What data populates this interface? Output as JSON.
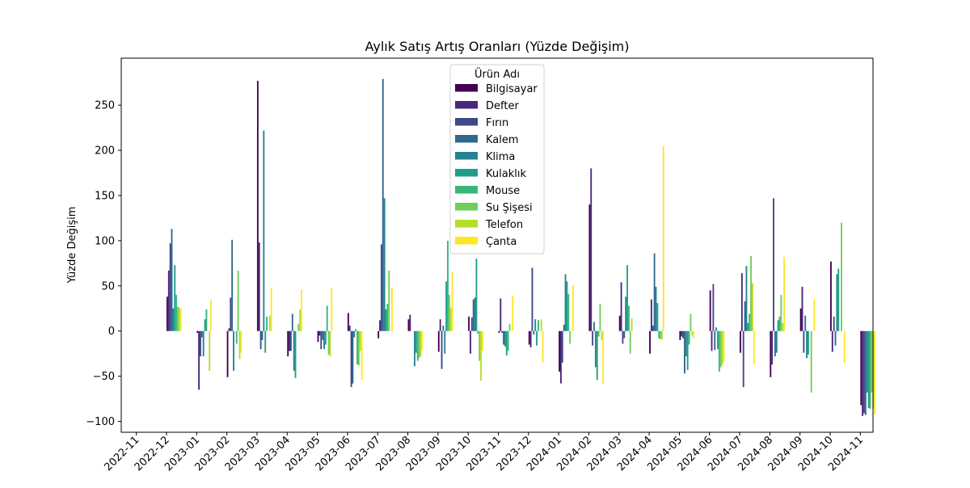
{
  "chart_data": {
    "type": "bar",
    "title": "Aylık Satış Artış Oranları (Yüzde Değişim)",
    "xlabel": "",
    "ylabel": "Yüzde Değişim",
    "ylim": [
      -112,
      302
    ],
    "yticks": [
      -100,
      -50,
      0,
      50,
      100,
      150,
      200,
      250
    ],
    "grid": false,
    "legend": {
      "title": "Ürün Adı",
      "placement": "top-center"
    },
    "categories": [
      "2022-11",
      "2022-12",
      "2023-01",
      "2023-02",
      "2023-03",
      "2023-04",
      "2023-05",
      "2023-06",
      "2023-07",
      "2023-08",
      "2023-09",
      "2023-10",
      "2023-11",
      "2023-12",
      "2024-01",
      "2024-02",
      "2024-03",
      "2024-04",
      "2024-05",
      "2024-06",
      "2024-07",
      "2024-08",
      "2024-09",
      "2024-10",
      "2024-11"
    ],
    "series": [
      {
        "name": "Bilgisayar",
        "color": "#440154",
        "values": [
          0,
          38,
          -2,
          -51,
          277,
          -28,
          -12,
          20,
          -8,
          13,
          -23,
          16,
          -2,
          -15,
          -45,
          140,
          17,
          -25,
          -10,
          45,
          -24,
          -51,
          25,
          77,
          -82
        ]
      },
      {
        "name": "Defter",
        "color": "#482878",
        "values": [
          0,
          67,
          -65,
          3,
          98,
          -22,
          -5,
          6,
          12,
          18,
          13,
          -25,
          36,
          -18,
          -58,
          180,
          54,
          35,
          -6,
          -22,
          64,
          -37,
          49,
          -23,
          -94
        ]
      },
      {
        "name": "Fırın",
        "color": "#3e4989",
        "values": [
          0,
          97,
          -28,
          37,
          -20,
          -22,
          -20,
          -62,
          96,
          0,
          -42,
          15,
          -2,
          70,
          -35,
          -16,
          -14,
          6,
          -8,
          52,
          -62,
          147,
          -24,
          16,
          -91
        ]
      },
      {
        "name": "Kalem",
        "color": "#31688e",
        "values": [
          0,
          113,
          -7,
          101,
          -10,
          19,
          -10,
          -58,
          279,
          0,
          6,
          35,
          -15,
          -4,
          7,
          10,
          -8,
          86,
          -47,
          -21,
          33,
          -28,
          17,
          -16,
          -93
        ]
      },
      {
        "name": "Klima",
        "color": "#26828e",
        "values": [
          0,
          25,
          -28,
          -44,
          222,
          -44,
          -20,
          -7,
          147,
          -39,
          -25,
          37,
          -17,
          13,
          63,
          -40,
          38,
          49,
          -28,
          4,
          72,
          -24,
          -30,
          63,
          -68
        ]
      },
      {
        "name": "Kulaklık",
        "color": "#1f9e89",
        "values": [
          0,
          73,
          13,
          0,
          -24,
          -52,
          -15,
          2,
          24,
          -24,
          55,
          80,
          -27,
          -16,
          55,
          -54,
          73,
          31,
          -43,
          -20,
          9,
          12,
          -26,
          69,
          -85
        ]
      },
      {
        "name": "Mouse",
        "color": "#35b779",
        "values": [
          0,
          40,
          24,
          -14,
          16,
          0,
          28,
          -37,
          30,
          -33,
          100,
          -3,
          -22,
          12,
          41,
          -6,
          28,
          -8,
          -15,
          -45,
          19,
          16,
          0,
          0,
          -86
        ]
      },
      {
        "name": "Su Şişesi",
        "color": "#6ece58",
        "values": [
          0,
          27,
          0,
          67,
          0,
          8,
          -26,
          -38,
          67,
          -30,
          40,
          -33,
          8,
          0,
          -14,
          30,
          -25,
          -9,
          19,
          -40,
          83,
          40,
          -68,
          120,
          -68
        ]
      },
      {
        "name": "Telefon",
        "color": "#b5de2b",
        "values": [
          0,
          26,
          -44,
          -31,
          17,
          24,
          -28,
          -22,
          0,
          -28,
          26,
          -55,
          0,
          13,
          0,
          -10,
          14,
          -9,
          -5,
          -37,
          53,
          9,
          0,
          0,
          -86
        ]
      },
      {
        "name": "Çanta",
        "color": "#fde725",
        "values": [
          0,
          25,
          35,
          -24,
          48,
          46,
          47,
          -54,
          48,
          -21,
          65,
          -22,
          39,
          -35,
          51,
          -58,
          0,
          205,
          -8,
          -34,
          -37,
          82,
          35,
          -35,
          -92
        ]
      }
    ]
  }
}
